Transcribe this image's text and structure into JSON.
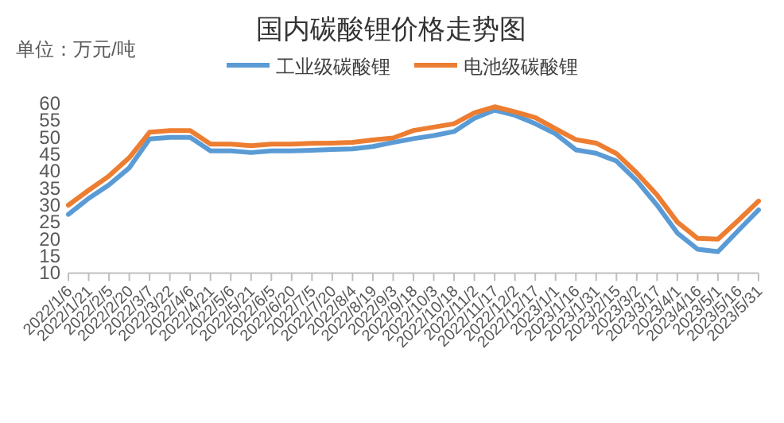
{
  "chart_data": {
    "type": "line",
    "title": "国内碳酸锂价格走势图",
    "ylabel": "单位：万元/吨",
    "x": [
      "2022-01-06",
      "2022-01-21",
      "2022-02-05",
      "2022-02-20",
      "2022-03-07",
      "2022-03-22",
      "2022-04-06",
      "2022-04-21",
      "2022-05-06",
      "2022-05-21",
      "2022-06-05",
      "2022-06-20",
      "2022-07-05",
      "2022-07-20",
      "2022-08-04",
      "2022-08-19",
      "2022-09-03",
      "2022-09-18",
      "2022-10-03",
      "2022-10-18",
      "2022-11-02",
      "2022-11-17",
      "2022-12-02",
      "2022-12-17",
      "2023-01-01",
      "2023-01-16",
      "2023-01-31",
      "2023-02-15",
      "2023-03-02",
      "2023-03-17",
      "2023-04-01",
      "2023-04-16",
      "2023-05-01",
      "2023-05-16",
      "2023-05-31"
    ],
    "series": [
      {
        "name": "工业级碳酸锂",
        "color": "#5b9bd5",
        "values": [
          27.3,
          32,
          36,
          41,
          49.5,
          50,
          50,
          46,
          46,
          45.5,
          46,
          46,
          46.2,
          46.4,
          46.6,
          47.3,
          48.5,
          49.6,
          50.5,
          51.7,
          55.6,
          58,
          56.5,
          54,
          51,
          46.3,
          45.3,
          43,
          37.2,
          30,
          21.8,
          17,
          16.3,
          22.5,
          28.6
        ]
      },
      {
        "name": "电池级碳酸锂",
        "color": "#ed7d31",
        "values": [
          30,
          34.4,
          38.6,
          44,
          51.5,
          52,
          52,
          48,
          48,
          47.5,
          48,
          48,
          48.2,
          48.3,
          48.5,
          49.2,
          49.8,
          52,
          53,
          54,
          57.2,
          59,
          57.5,
          55.8,
          52.5,
          49.3,
          48.3,
          45.2,
          39.5,
          33,
          25,
          20.2,
          20,
          25.5,
          31.2
        ]
      }
    ],
    "xlim": [
      "2022-01-06",
      "2023-05-31"
    ],
    "xticks": [
      {
        "value": "2022-01-06",
        "label": "2022/1/6"
      },
      {
        "value": "2022-01-21",
        "label": "2022/1/21"
      },
      {
        "value": "2022-02-05",
        "label": "2022/2/5"
      },
      {
        "value": "2022-02-20",
        "label": "2022/2/20"
      },
      {
        "value": "2022-03-07",
        "label": "2022/3/7"
      },
      {
        "value": "2022-03-22",
        "label": "2022/3/22"
      },
      {
        "value": "2022-04-06",
        "label": "2022/4/6"
      },
      {
        "value": "2022-04-21",
        "label": "2022/4/21"
      },
      {
        "value": "2022-05-06",
        "label": "2022/5/6"
      },
      {
        "value": "2022-05-21",
        "label": "2022/5/21"
      },
      {
        "value": "2022-06-05",
        "label": "2022/6/5"
      },
      {
        "value": "2022-06-20",
        "label": "2022/6/20"
      },
      {
        "value": "2022-07-05",
        "label": "2022/7/5"
      },
      {
        "value": "2022-07-20",
        "label": "2022/7/20"
      },
      {
        "value": "2022-08-04",
        "label": "2022/8/4"
      },
      {
        "value": "2022-08-19",
        "label": "2022/8/19"
      },
      {
        "value": "2022-09-03",
        "label": "2022/9/3"
      },
      {
        "value": "2022-09-18",
        "label": "2022/9/18"
      },
      {
        "value": "2022-10-03",
        "label": "2022/10/3"
      },
      {
        "value": "2022-10-18",
        "label": "2022/10/18"
      },
      {
        "value": "2022-11-02",
        "label": "2022/11/2"
      },
      {
        "value": "2022-11-17",
        "label": "2022/11/17"
      },
      {
        "value": "2022-12-02",
        "label": "2022/12/2"
      },
      {
        "value": "2022-12-17",
        "label": "2022/12/17"
      },
      {
        "value": "2023-01-01",
        "label": "2023/1/1"
      },
      {
        "value": "2023-01-16",
        "label": "2023/1/16"
      },
      {
        "value": "2023-01-31",
        "label": "2023/1/31"
      },
      {
        "value": "2023-02-15",
        "label": "2023/2/15"
      },
      {
        "value": "2023-03-02",
        "label": "2023/3/2"
      },
      {
        "value": "2023-03-17",
        "label": "2023/3/17"
      },
      {
        "value": "2023-04-01",
        "label": "2023/4/1"
      },
      {
        "value": "2023-04-16",
        "label": "2023/4/16"
      },
      {
        "value": "2023-05-01",
        "label": "2023/5/1"
      },
      {
        "value": "2023-05-16",
        "label": "2023/5/16"
      },
      {
        "value": "2023-05-31",
        "label": "2023/5/31"
      }
    ],
    "ylim": [
      10,
      60
    ],
    "yticks": [
      10,
      15,
      20,
      25,
      30,
      35,
      40,
      45,
      50,
      55,
      60
    ],
    "grid": false,
    "legend": "top",
    "marker": "none",
    "line_style": "solid"
  }
}
